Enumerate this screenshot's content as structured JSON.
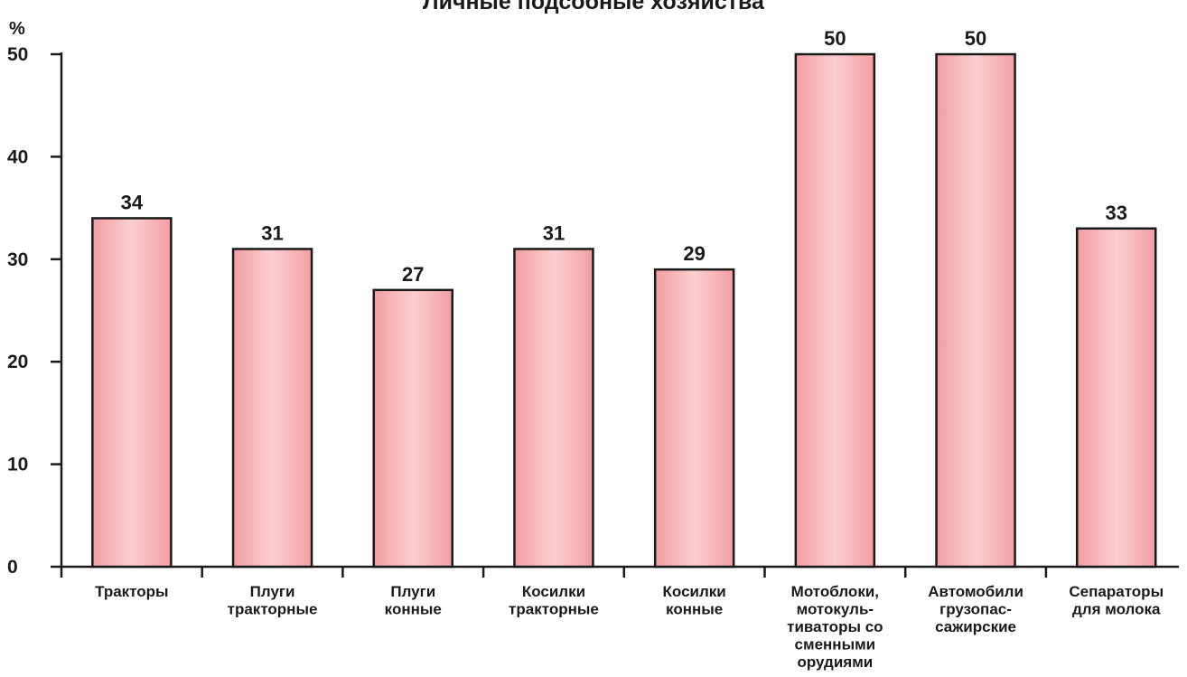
{
  "chart_data": {
    "type": "bar",
    "title": "Личные подсобные хозяйства",
    "ylabel": "%",
    "xlabel": "",
    "ylim": [
      0,
      50
    ],
    "yticks": [
      0,
      10,
      20,
      30,
      40,
      50
    ],
    "grid": false,
    "bar_color": "#f29ea2",
    "categories": [
      [
        "Тракторы"
      ],
      [
        "Плуги",
        "тракторные"
      ],
      [
        "Плуги",
        "конные"
      ],
      [
        "Косилки",
        "тракторные"
      ],
      [
        "Косилки",
        "конные"
      ],
      [
        "Мотоблоки,",
        "мотокуль-",
        "тиваторы со",
        "сменными",
        "орудиями"
      ],
      [
        "Автомобили",
        "грузопас-",
        "сажирские"
      ],
      [
        "Сепараторы",
        "для молока"
      ]
    ],
    "values": [
      34,
      31,
      27,
      31,
      29,
      50,
      50,
      33
    ],
    "data_labels": [
      "34",
      "31",
      "27",
      "31",
      "29",
      "50",
      "50",
      "33"
    ]
  }
}
